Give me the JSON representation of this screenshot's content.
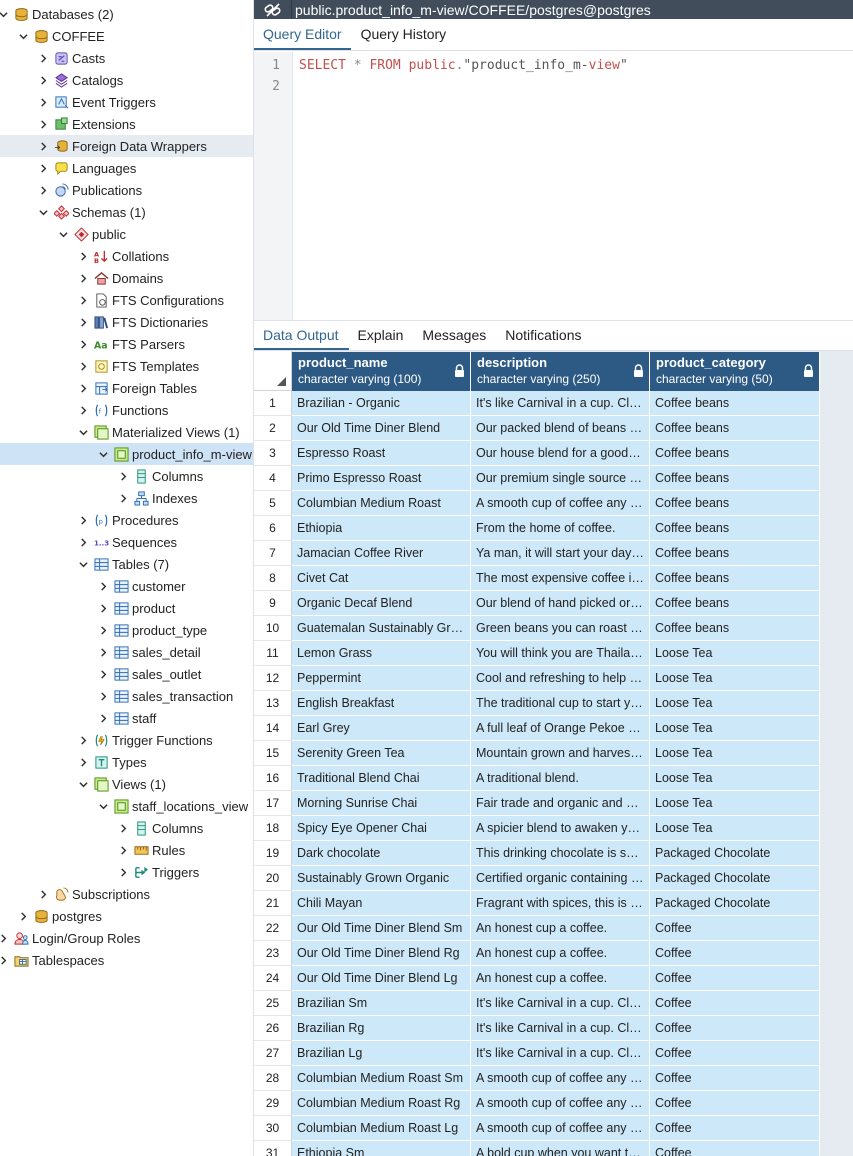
{
  "tree": [
    {
      "d": 0,
      "tog": "down",
      "icon": "database-stack-icon",
      "label": "Databases (2)"
    },
    {
      "d": 1,
      "tog": "down",
      "icon": "database-icon",
      "label": "COFFEE"
    },
    {
      "d": 2,
      "tog": "right",
      "icon": "casts-icon",
      "label": "Casts"
    },
    {
      "d": 2,
      "tog": "right",
      "icon": "catalogs-icon",
      "label": "Catalogs"
    },
    {
      "d": 2,
      "tog": "right",
      "icon": "event-triggers-icon",
      "label": "Event Triggers"
    },
    {
      "d": 2,
      "tog": "right",
      "icon": "extensions-icon",
      "label": "Extensions"
    },
    {
      "d": 2,
      "tog": "right",
      "icon": "foreign-data-wrappers-icon",
      "label": "Foreign Data Wrappers",
      "state": "hl"
    },
    {
      "d": 2,
      "tog": "right",
      "icon": "languages-icon",
      "label": "Languages"
    },
    {
      "d": 2,
      "tog": "right",
      "icon": "publications-icon",
      "label": "Publications"
    },
    {
      "d": 2,
      "tog": "down",
      "icon": "schemas-icon",
      "label": "Schemas (1)"
    },
    {
      "d": 3,
      "tog": "down",
      "icon": "schema-icon",
      "label": "public"
    },
    {
      "d": 4,
      "tog": "right",
      "icon": "collations-icon",
      "label": "Collations"
    },
    {
      "d": 4,
      "tog": "right",
      "icon": "domains-icon",
      "label": "Domains"
    },
    {
      "d": 4,
      "tog": "right",
      "icon": "fts-configurations-icon",
      "label": "FTS Configurations"
    },
    {
      "d": 4,
      "tog": "right",
      "icon": "fts-dictionaries-icon",
      "label": "FTS Dictionaries"
    },
    {
      "d": 4,
      "tog": "right",
      "icon": "fts-parsers-icon",
      "label": "FTS Parsers"
    },
    {
      "d": 4,
      "tog": "right",
      "icon": "fts-templates-icon",
      "label": "FTS Templates"
    },
    {
      "d": 4,
      "tog": "right",
      "icon": "foreign-tables-icon",
      "label": "Foreign Tables"
    },
    {
      "d": 4,
      "tog": "right",
      "icon": "functions-icon",
      "label": "Functions"
    },
    {
      "d": 4,
      "tog": "down",
      "icon": "materialized-views-icon",
      "label": "Materialized Views (1)"
    },
    {
      "d": 5,
      "tog": "down",
      "icon": "materialized-view-icon",
      "label": "product_info_m-view",
      "state": "sel"
    },
    {
      "d": 6,
      "tog": "right",
      "icon": "columns-icon",
      "label": "Columns"
    },
    {
      "d": 6,
      "tog": "right",
      "icon": "indexes-icon",
      "label": "Indexes"
    },
    {
      "d": 4,
      "tog": "right",
      "icon": "procedures-icon",
      "label": "Procedures"
    },
    {
      "d": 4,
      "tog": "right",
      "icon": "sequences-icon",
      "label": "Sequences"
    },
    {
      "d": 4,
      "tog": "down",
      "icon": "tables-icon",
      "label": "Tables (7)"
    },
    {
      "d": 5,
      "tog": "right",
      "icon": "table-icon",
      "label": "customer"
    },
    {
      "d": 5,
      "tog": "right",
      "icon": "table-icon",
      "label": "product"
    },
    {
      "d": 5,
      "tog": "right",
      "icon": "table-icon",
      "label": "product_type"
    },
    {
      "d": 5,
      "tog": "right",
      "icon": "table-icon",
      "label": "sales_detail"
    },
    {
      "d": 5,
      "tog": "right",
      "icon": "table-icon",
      "label": "sales_outlet"
    },
    {
      "d": 5,
      "tog": "right",
      "icon": "table-icon",
      "label": "sales_transaction"
    },
    {
      "d": 5,
      "tog": "right",
      "icon": "table-icon",
      "label": "staff"
    },
    {
      "d": 4,
      "tog": "right",
      "icon": "trigger-functions-icon",
      "label": "Trigger Functions"
    },
    {
      "d": 4,
      "tog": "right",
      "icon": "types-icon",
      "label": "Types"
    },
    {
      "d": 4,
      "tog": "down",
      "icon": "views-icon",
      "label": "Views (1)"
    },
    {
      "d": 5,
      "tog": "down",
      "icon": "view-icon",
      "label": "staff_locations_view"
    },
    {
      "d": 6,
      "tog": "right",
      "icon": "columns-icon",
      "label": "Columns"
    },
    {
      "d": 6,
      "tog": "right",
      "icon": "rules-icon",
      "label": "Rules"
    },
    {
      "d": 6,
      "tog": "right",
      "icon": "triggers-icon",
      "label": "Triggers"
    },
    {
      "d": 2,
      "tog": "right",
      "icon": "subscriptions-icon",
      "label": "Subscriptions"
    },
    {
      "d": 1,
      "tog": "right",
      "icon": "database-icon",
      "label": "postgres"
    },
    {
      "d": 0,
      "tog": "right",
      "icon": "login-roles-icon",
      "label": "Login/Group Roles"
    },
    {
      "d": 0,
      "tog": "right",
      "icon": "tablespaces-icon",
      "label": "Tablespaces"
    }
  ],
  "topbar": {
    "title": "public.product_info_m-view/COFFEE/postgres@postgres"
  },
  "query_tabs": [
    "Query Editor",
    "Query History"
  ],
  "editor": {
    "line_numbers": [
      "1",
      "2"
    ],
    "kw1": "SELECT",
    "star": " * ",
    "kw2": "FROM",
    "schema": " public",
    "dot": ".",
    "ident_a": "\"product_info_m-",
    "ident_b": "view",
    "ident_c": "\""
  },
  "data_tabs": [
    "Data Output",
    "Explain",
    "Messages",
    "Notifications"
  ],
  "grid": {
    "columns": [
      {
        "name": "product_name",
        "type": "character varying (100)"
      },
      {
        "name": "description",
        "type": "character varying (250)"
      },
      {
        "name": "product_category",
        "type": "character varying (50)"
      }
    ],
    "rows": [
      [
        "1",
        "Brazilian - Organic",
        "It's like Carnival in a cup. Clean and smooth.",
        "Coffee beans"
      ],
      [
        "2",
        "Our Old Time Diner Blend",
        "Our packed blend of beans that is reminiscent of the cup of coffee you used to get at the diner.",
        "Coffee beans"
      ],
      [
        "3",
        "Espresso Roast",
        "Our house blend for a good espresso shot.",
        "Coffee beans"
      ],
      [
        "4",
        "Primo Espresso Roast",
        "Our premium single source of hand roasted beans.",
        "Coffee beans"
      ],
      [
        "5",
        "Columbian Medium Roast",
        "A smooth cup of coffee any time of day.",
        "Coffee beans"
      ],
      [
        "6",
        "Ethiopia",
        "From the home of coffee.",
        "Coffee beans"
      ],
      [
        "7",
        "Jamacian Coffee River",
        "Ya man, it will start your day off right.",
        "Coffee beans"
      ],
      [
        "8",
        "Civet Cat",
        "The most expensive coffee in the world.",
        "Coffee beans"
      ],
      [
        "9",
        "Organic Decaf Blend",
        "Our blend of hand picked organic beans.",
        "Coffee beans"
      ],
      [
        "10",
        "Guatemalan Sustainably Grown",
        "Green beans you can roast yourself.",
        "Coffee beans"
      ],
      [
        "11",
        "Lemon Grass",
        "You will think you are Thailand when you drink this.",
        "Loose Tea"
      ],
      [
        "12",
        "Peppermint",
        "Cool and refreshing to help calm you down.",
        "Loose Tea"
      ],
      [
        "13",
        "English Breakfast",
        "The traditional cup to start your day.",
        "Loose Tea"
      ],
      [
        "14",
        "Earl Grey",
        "A full leaf of Orange Pekoe blend.",
        "Loose Tea"
      ],
      [
        "15",
        "Serenity Green Tea",
        "Mountain grown and harvested.",
        "Loose Tea"
      ],
      [
        "16",
        "Traditional Blend Chai",
        "A traditional blend.",
        "Loose Tea"
      ],
      [
        "17",
        "Morning Sunrise Chai",
        "Fair trade and organic and handpicked.",
        "Loose Tea"
      ],
      [
        "18",
        "Spicy Eye Opener Chai",
        "A spicier blend to awaken your senses.",
        "Loose Tea"
      ],
      [
        "19",
        "Dark chocolate",
        "This drinking chocolate is smooth and rich.",
        "Packaged Chocolate"
      ],
      [
        "20",
        "Sustainably Grown Organic",
        "Certified organic containing the finest cocoa.",
        "Packaged Chocolate"
      ],
      [
        "21",
        "Chili Mayan",
        "Fragrant with spices, this is the drink of the Mayans.",
        "Packaged Chocolate"
      ],
      [
        "22",
        "Our Old Time Diner Blend Sm",
        "An honest cup a coffee.",
        "Coffee"
      ],
      [
        "23",
        "Our Old Time Diner Blend Rg",
        "An honest cup a coffee.",
        "Coffee"
      ],
      [
        "24",
        "Our Old Time Diner Blend Lg",
        "An honest cup a coffee.",
        "Coffee"
      ],
      [
        "25",
        "Brazilian Sm",
        "It's like Carnival in a cup. Clean and smooth.",
        "Coffee"
      ],
      [
        "26",
        "Brazilian Rg",
        "It's like Carnival in a cup. Clean and smooth.",
        "Coffee"
      ],
      [
        "27",
        "Brazilian Lg",
        "It's like Carnival in a cup. Clean and smooth.",
        "Coffee"
      ],
      [
        "28",
        "Columbian Medium Roast Sm",
        "A smooth cup of coffee any time of day.",
        "Coffee"
      ],
      [
        "29",
        "Columbian Medium Roast Rg",
        "A smooth cup of coffee any time of day.",
        "Coffee"
      ],
      [
        "30",
        "Columbian Medium Roast Lg",
        "A smooth cup of coffee any time of day.",
        "Coffee"
      ],
      [
        "31",
        "Ethiopia Sm",
        "A bold cup when you want that something extra.",
        "Coffee"
      ]
    ]
  }
}
